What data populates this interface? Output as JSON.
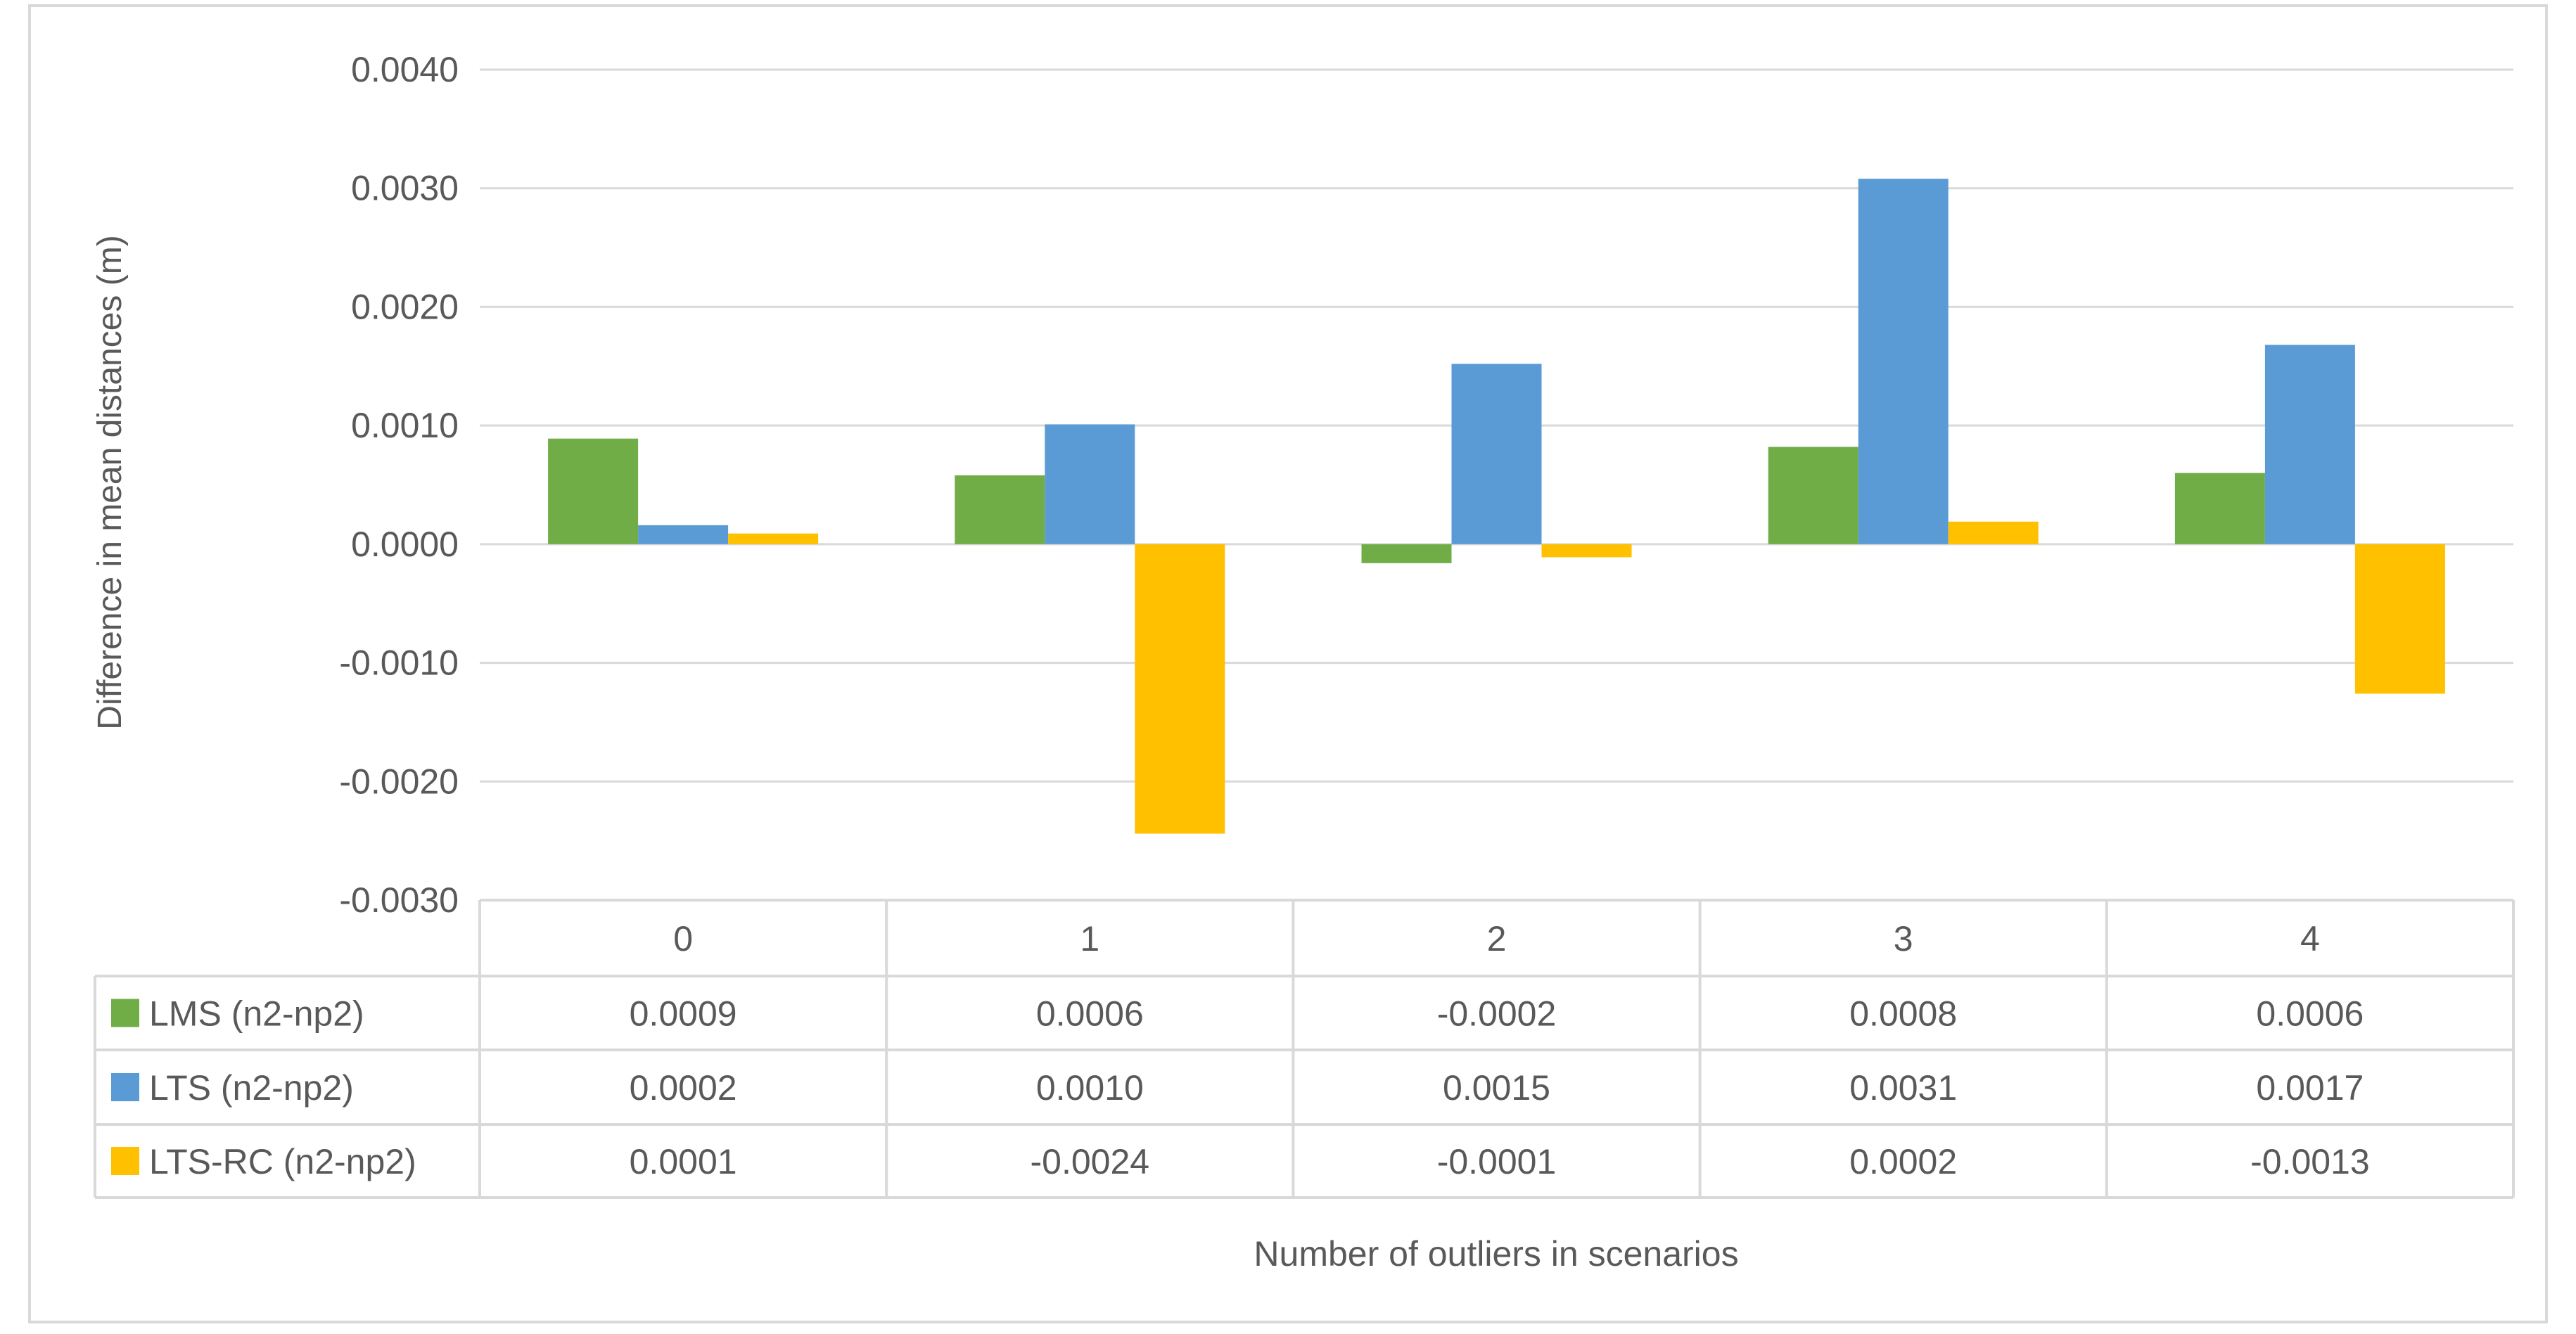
{
  "chart_data": {
    "type": "bar",
    "title": "",
    "xlabel": "Number of outliers in scenarios",
    "ylabel": "Difference in mean distances (m)",
    "categories": [
      "0",
      "1",
      "2",
      "3",
      "4"
    ],
    "ylim": [
      -0.003,
      0.004
    ],
    "yticks": [
      "0.0040",
      "0.0030",
      "0.0020",
      "0.0010",
      "0.0000",
      "-0.0010",
      "-0.0020",
      "-0.0030"
    ],
    "ytick_values": [
      0.004,
      0.003,
      0.002,
      0.001,
      0,
      -0.001,
      -0.002,
      -0.003
    ],
    "grid": true,
    "legend": "data-table-below",
    "series": [
      {
        "name": "LMS (n2-np2)",
        "color": "#70AD47",
        "values": [
          0.00089,
          0.00058,
          -0.00016,
          0.00082,
          0.0006
        ],
        "table_labels": [
          "0.0009",
          "0.0006",
          "-0.0002",
          "0.0008",
          "0.0006"
        ]
      },
      {
        "name": "LTS (n2-np2)",
        "color": "#5B9BD5",
        "values": [
          0.00016,
          0.00101,
          0.00152,
          0.00308,
          0.00168
        ],
        "table_labels": [
          "0.0002",
          "0.0010",
          "0.0015",
          "0.0031",
          "0.0017"
        ]
      },
      {
        "name": "LTS-RC (n2-np2)",
        "color": "#FFC000",
        "values": [
          9e-05,
          -0.00244,
          -0.00011,
          0.00019,
          -0.00126
        ],
        "table_labels": [
          "0.0001",
          "-0.0024",
          "-0.0001",
          "0.0002",
          "-0.0013"
        ]
      }
    ]
  }
}
